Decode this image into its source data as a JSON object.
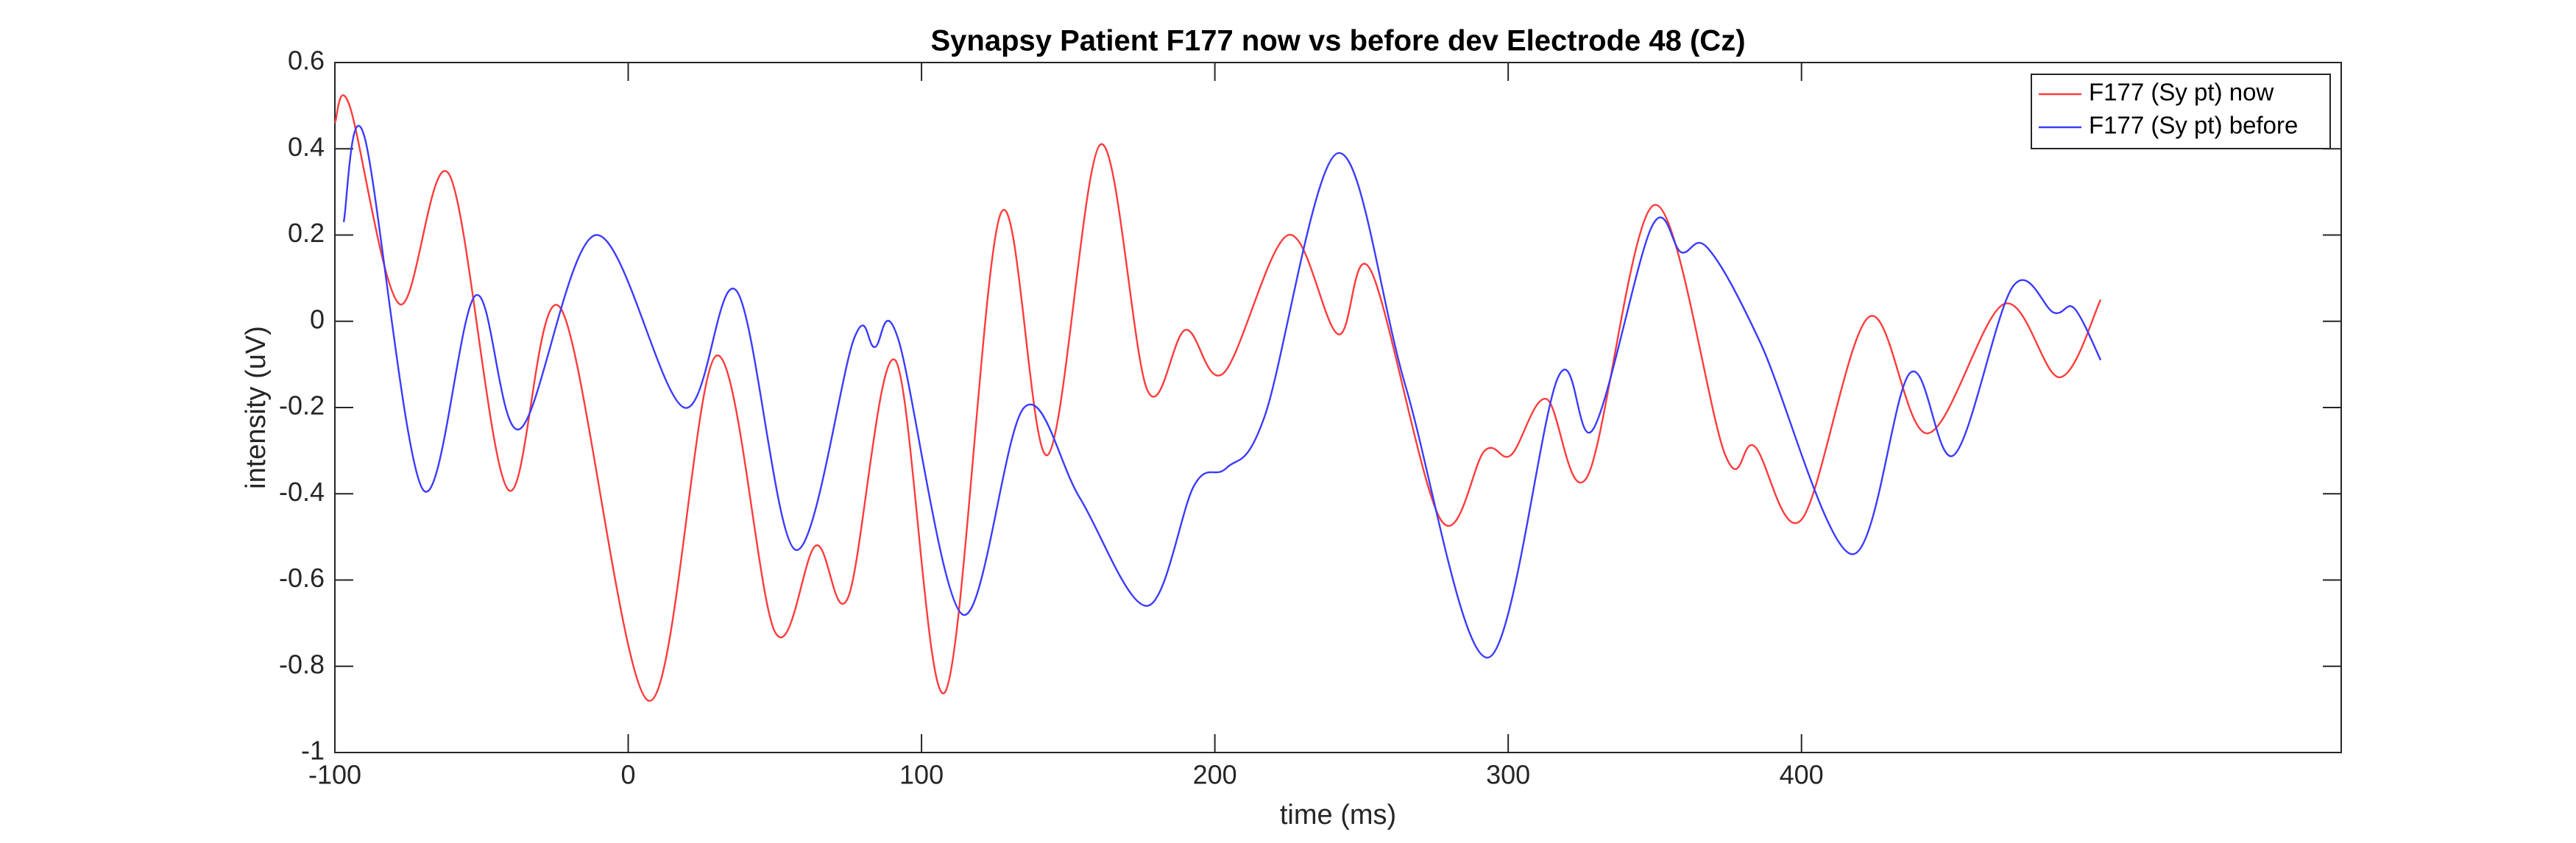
{
  "chart_data": {
    "type": "line",
    "title": "Synapsy Patient F177 now vs before dev Electrode 48 (Cz)",
    "x_label": "time (ms)",
    "y_label": "intensity (uV)",
    "xlim": [
      -100,
      584
    ],
    "ylim": [
      -1,
      0.6
    ],
    "xticks": [
      -100,
      0,
      100,
      200,
      300,
      400
    ],
    "yticks": [
      -1,
      -0.8,
      -0.6,
      -0.4,
      -0.2,
      0,
      0.2,
      0.4,
      0.6
    ],
    "legend": "upper right",
    "series": [
      {
        "name": "F177 (Sy pt) now",
        "color": "#ff3b3b",
        "x": [
          -100,
          -95,
          -78,
          -61,
          -41,
          -23,
          7,
          30,
          50,
          64,
          75,
          91,
          108,
          127,
          143,
          161,
          177,
          190,
          203,
          225,
          242,
          253,
          277,
          292,
          301,
          313,
          327,
          350,
          374,
          384,
          400,
          423,
          443,
          469,
          488,
          502
        ],
        "values": [
          0.46,
          0.5,
          0.04,
          0.34,
          -0.39,
          0.03,
          -0.88,
          -0.08,
          -0.72,
          -0.52,
          -0.64,
          -0.09,
          -0.86,
          0.25,
          -0.31,
          0.41,
          -0.16,
          -0.02,
          -0.12,
          0.2,
          -0.03,
          0.12,
          -0.46,
          -0.3,
          -0.31,
          -0.18,
          -0.36,
          0.27,
          -0.31,
          -0.29,
          -0.46,
          0.01,
          -0.26,
          0.04,
          -0.13,
          0.05
        ]
      },
      {
        "name": "F177 (Sy pt) before",
        "color": "#3b3bff",
        "x": [
          -97,
          -90,
          -70,
          -52,
          -37,
          -11,
          19,
          37,
          57,
          77,
          84,
          92,
          114,
          135,
          154,
          177,
          193,
          204,
          217,
          242,
          265,
          293,
          317,
          329,
          349,
          359,
          368,
          386,
          417,
          437,
          452,
          472,
          486,
          493,
          502
        ],
        "values": [
          0.23,
          0.43,
          -0.39,
          0.06,
          -0.25,
          0.2,
          -0.2,
          0.07,
          -0.53,
          -0.04,
          -0.06,
          -0.04,
          -0.68,
          -0.2,
          -0.41,
          -0.66,
          -0.38,
          -0.34,
          -0.22,
          0.39,
          -0.15,
          -0.78,
          -0.13,
          -0.25,
          0.22,
          0.16,
          0.17,
          -0.05,
          -0.54,
          -0.12,
          -0.31,
          0.08,
          0.02,
          0.03,
          -0.09
        ]
      }
    ]
  }
}
